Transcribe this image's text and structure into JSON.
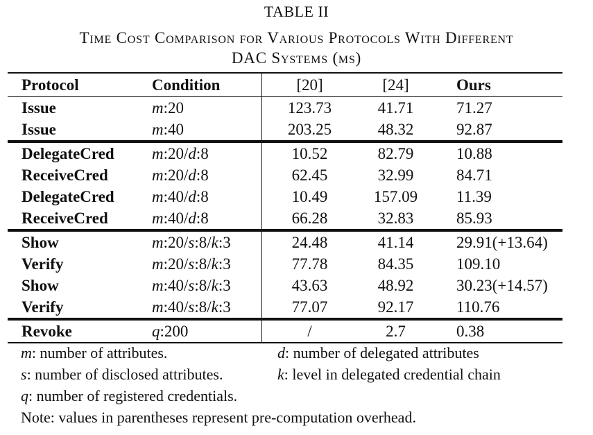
{
  "table_label": "TABLE II",
  "caption_line1": "Time Cost Comparison for Various Protocols With Different",
  "caption_line2": "DAC Systems (ms)",
  "headers": {
    "protocol": "Protocol",
    "condition": "Condition",
    "ref20": "[20]",
    "ref24": "[24]",
    "ours": "Ours"
  },
  "rows": [
    {
      "protocol": "Issue",
      "condition": "m:20",
      "ref20": "123.73",
      "ref24": "41.71",
      "ours": "71.27"
    },
    {
      "protocol": "Issue",
      "condition": "m:40",
      "ref20": "203.25",
      "ref24": "48.32",
      "ours": "92.87"
    },
    {
      "protocol": "DelegateCred",
      "condition": "m:20/d:8",
      "ref20": "10.52",
      "ref24": "82.79",
      "ours": "10.88"
    },
    {
      "protocol": "ReceiveCred",
      "condition": "m:20/d:8",
      "ref20": "62.45",
      "ref24": "32.99",
      "ours": "84.71"
    },
    {
      "protocol": "DelegateCred",
      "condition": "m:40/d:8",
      "ref20": "10.49",
      "ref24": "157.09",
      "ours": "11.39"
    },
    {
      "protocol": "ReceiveCred",
      "condition": "m:40/d:8",
      "ref20": "66.28",
      "ref24": "32.83",
      "ours": "85.93"
    },
    {
      "protocol": "Show",
      "condition": "m:20/s:8/k:3",
      "ref20": "24.48",
      "ref24": "41.14",
      "ours": "29.91(+13.64)"
    },
    {
      "protocol": "Verify",
      "condition": "m:20/s:8/k:3",
      "ref20": "77.78",
      "ref24": "84.35",
      "ours": "109.10"
    },
    {
      "protocol": "Show",
      "condition": "m:40/s:8/k:3",
      "ref20": "43.63",
      "ref24": "48.92",
      "ours": "30.23(+14.57)"
    },
    {
      "protocol": "Verify",
      "condition": "m:40/s:8/k:3",
      "ref20": "77.07",
      "ref24": "92.17",
      "ours": "110.76"
    },
    {
      "protocol": "Revoke",
      "condition": "q:200",
      "ref20": "/",
      "ref24": "2.7",
      "ours": "0.38"
    }
  ],
  "notes": {
    "m_var": "m",
    "m_text": ": number of attributes.",
    "d_var": "d",
    "d_text": ": number of delegated attributes",
    "s_var": "s",
    "s_text": ": number of disclosed attributes.",
    "k_var": "k",
    "k_text": ": level in delegated credential chain",
    "q_var": "q",
    "q_text": ": number of registered credentials.",
    "note": "Note: values in parentheses represent pre-computation overhead."
  }
}
